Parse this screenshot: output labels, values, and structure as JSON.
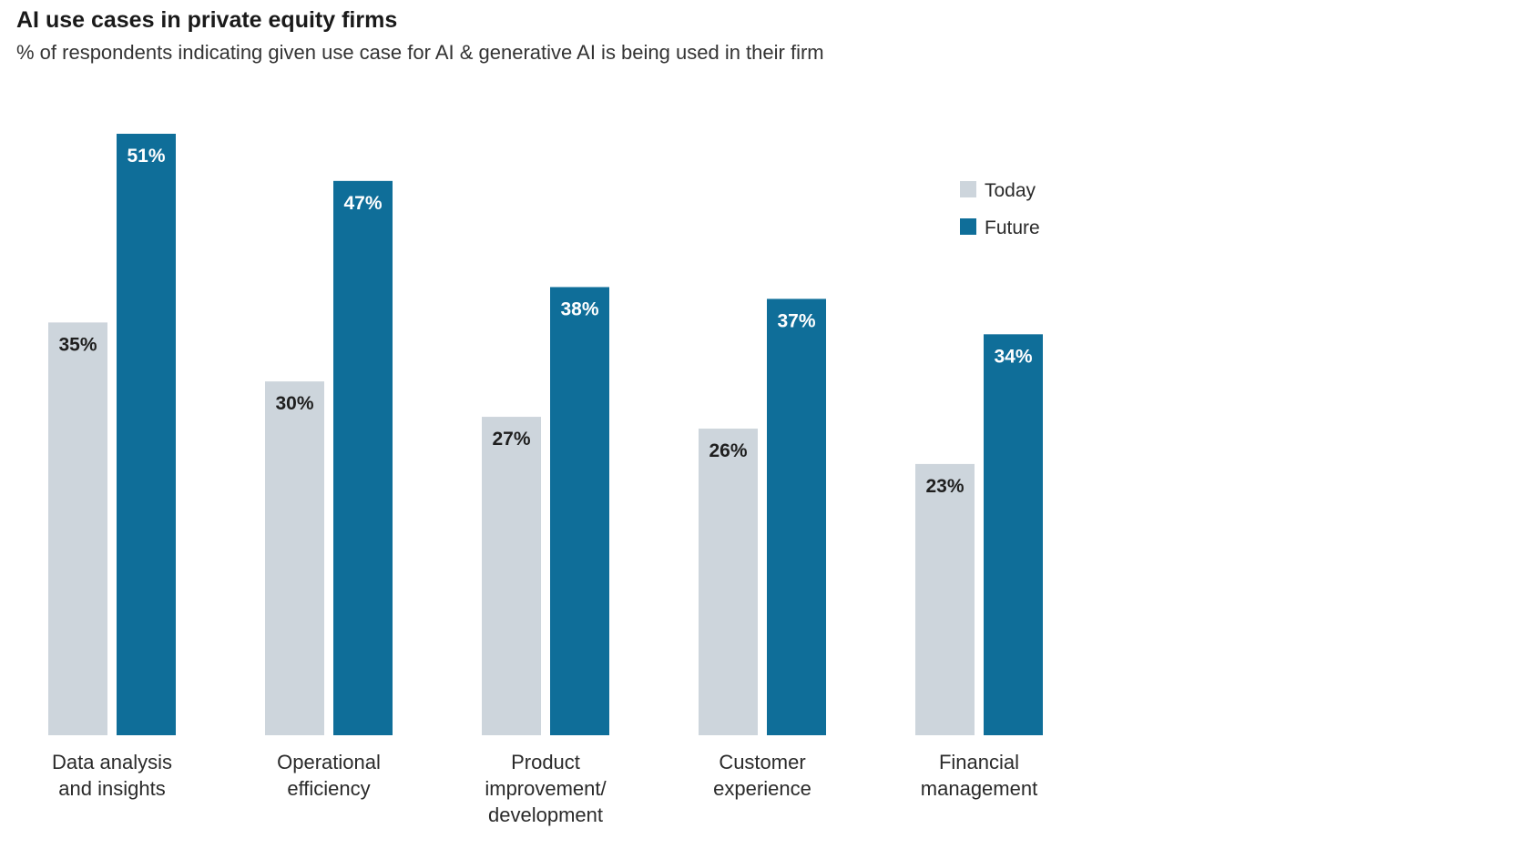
{
  "chart_data": {
    "type": "bar",
    "title": "AI use cases in private equity firms",
    "subtitle": "% of respondents indicating given use case for AI & generative AI is being used in their firm",
    "categories": [
      [
        "Data analysis",
        "and insights"
      ],
      [
        "Operational",
        "efficiency"
      ],
      [
        "Product",
        "improvement/",
        "development"
      ],
      [
        "Customer",
        "experience"
      ],
      [
        "Financial",
        "management"
      ]
    ],
    "series": [
      {
        "name": "Today",
        "values": [
          35,
          30,
          27,
          26,
          23
        ],
        "labels": [
          "35%",
          "30%",
          "27%",
          "26%",
          "23%"
        ],
        "color": "#cdd5dc",
        "label_color": "#1f1f1f"
      },
      {
        "name": "Future",
        "values": [
          51,
          47,
          38,
          37,
          34
        ],
        "labels": [
          "51%",
          "47%",
          "38%",
          "37%",
          "34%"
        ],
        "color": "#0f6e99",
        "label_color": "#ffffff"
      }
    ],
    "legend": {
      "position": "top-right",
      "items": [
        "Today",
        "Future"
      ]
    },
    "ylim": [
      0,
      51
    ],
    "xlabel": "",
    "ylabel": "",
    "grid": false
  }
}
